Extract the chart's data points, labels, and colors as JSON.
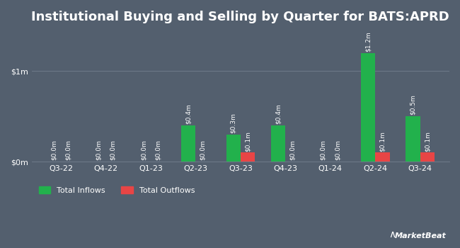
{
  "title": "Institutional Buying and Selling by Quarter for BATS:APRD",
  "quarters": [
    "Q3-22",
    "Q4-22",
    "Q1-23",
    "Q2-23",
    "Q3-23",
    "Q4-23",
    "Q1-24",
    "Q2-24",
    "Q3-24"
  ],
  "inflows": [
    0.0,
    0.0,
    0.0,
    0.4,
    0.3,
    0.4,
    0.0,
    1.2,
    0.5
  ],
  "outflows": [
    0.0,
    0.0,
    0.0,
    0.0,
    0.1,
    0.0,
    0.0,
    0.1,
    0.1
  ],
  "inflow_labels": [
    "$0.0m",
    "$0.0m",
    "$0.0m",
    "$0.4m",
    "$0.3m",
    "$0.4m",
    "$0.0m",
    "$1.2m",
    "$0.5m"
  ],
  "outflow_labels": [
    "$0.0m",
    "$0.0m",
    "$0.0m",
    "$0.0m",
    "$0.1m",
    "$0.0m",
    "$0.0m",
    "$0.1m",
    "$0.1m"
  ],
  "inflow_color": "#22b14c",
  "outflow_color": "#e84545",
  "background_color": "#535f6e",
  "plot_bg_color": "#535f6e",
  "text_color": "#ffffff",
  "grid_color": "#6b7787",
  "bar_width": 0.32,
  "ylim": [
    0,
    1.45
  ],
  "yticks": [
    0,
    1.0
  ],
  "ytick_labels": [
    "$0m",
    "$1m"
  ],
  "label_fontsize": 6.5,
  "title_fontsize": 13,
  "axis_fontsize": 8
}
